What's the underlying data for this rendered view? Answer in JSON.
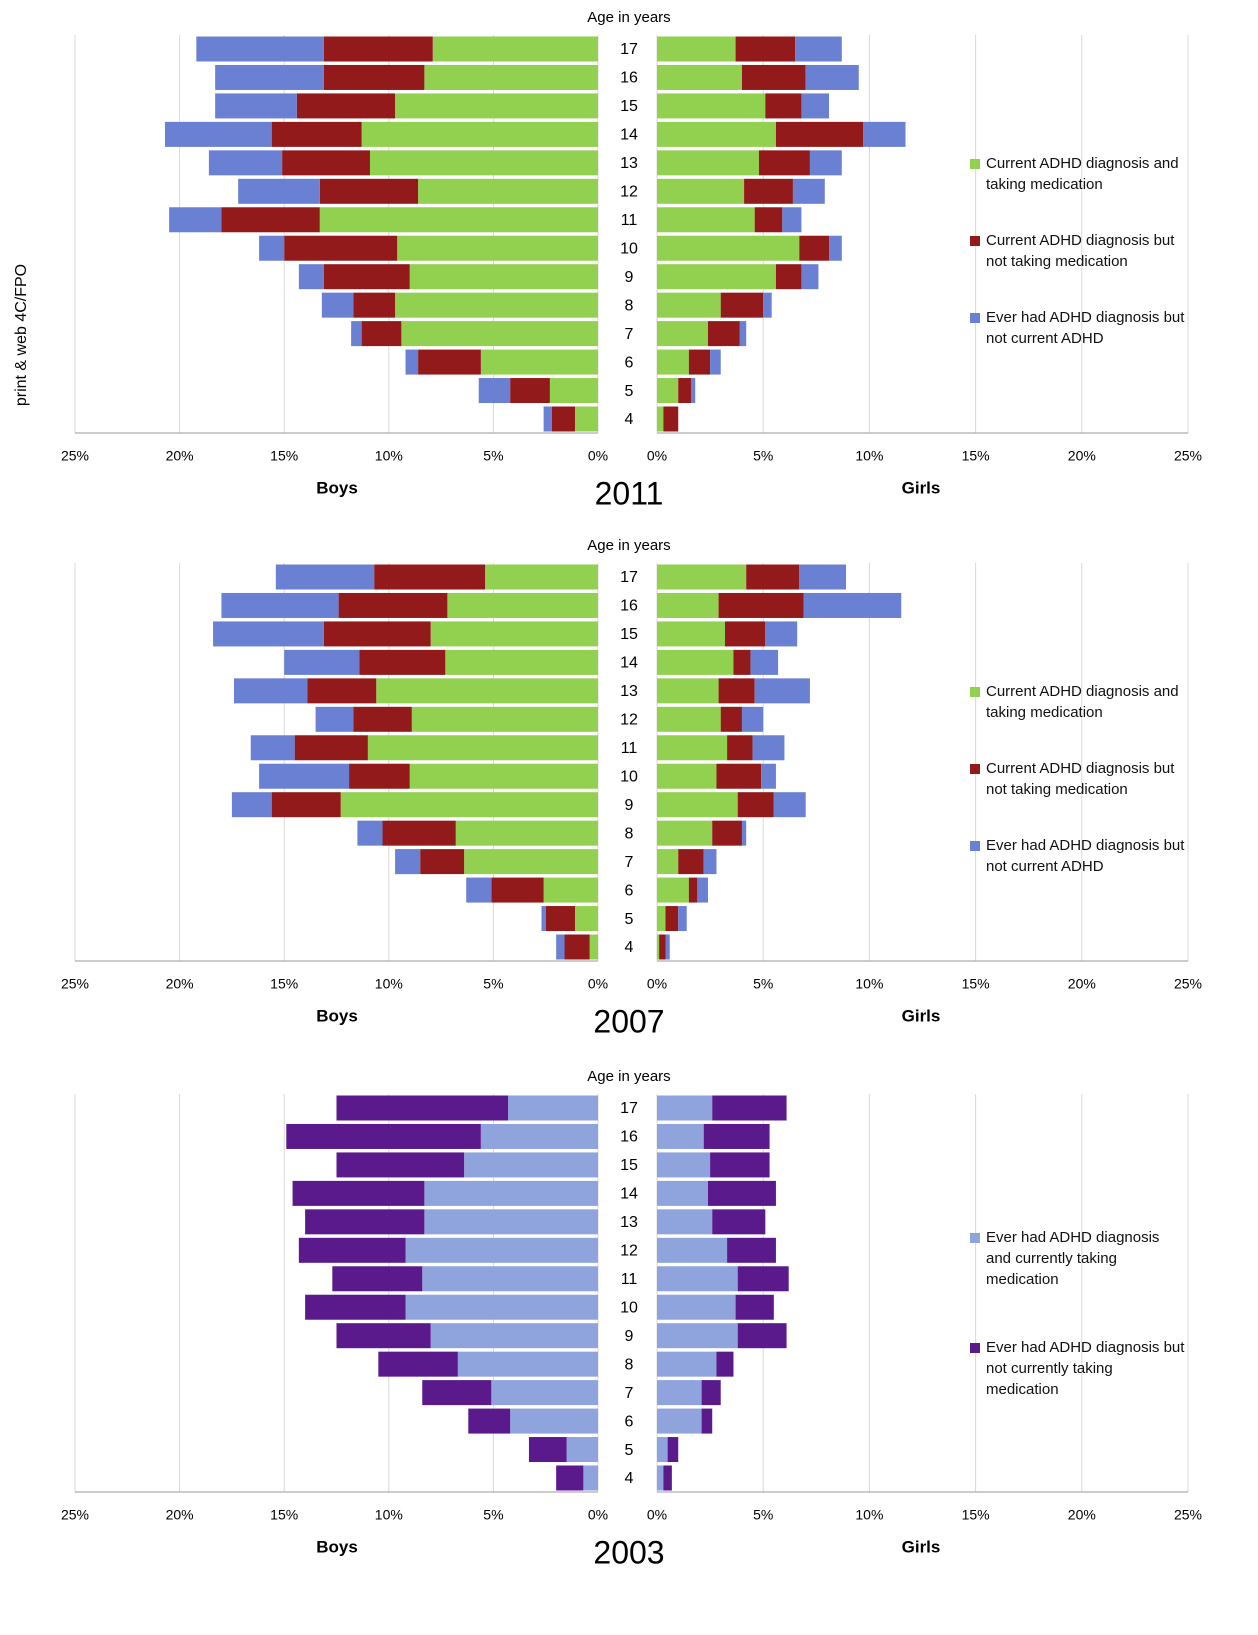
{
  "side_note": "print & web 4C/FPO",
  "chart_data": [
    {
      "type": "pyramid",
      "title": "2011",
      "axis_title": "Age in years",
      "left_label": "Boys",
      "right_label": "Girls",
      "categories": [
        "17",
        "16",
        "15",
        "14",
        "13",
        "12",
        "11",
        "10",
        "9",
        "8",
        "7",
        "6",
        "5",
        "4"
      ],
      "xlim": [
        0,
        25
      ],
      "xticks": [
        {
          "value": 0,
          "label": "0%"
        },
        {
          "value": 5,
          "label": "5%"
        },
        {
          "value": 10,
          "label": "10%"
        },
        {
          "value": 15,
          "label": "15%"
        },
        {
          "value": 20,
          "label": "20%"
        },
        {
          "value": 25,
          "label": "25%"
        }
      ],
      "grid": true,
      "series": [
        {
          "name": "Current ADHD diagnosis and taking medication",
          "color": "#92d050",
          "boys": [
            7.9,
            8.3,
            9.7,
            11.3,
            10.9,
            8.6,
            13.3,
            9.6,
            9.0,
            9.7,
            9.4,
            5.6,
            2.3,
            1.1
          ],
          "girls": [
            3.7,
            4.0,
            5.1,
            5.6,
            4.8,
            4.1,
            4.6,
            6.7,
            5.6,
            3.0,
            2.4,
            1.5,
            1.0,
            0.3
          ]
        },
        {
          "name": "Current ADHD diagnosis but not taking medication",
          "color": "#921a1a",
          "boys": [
            5.2,
            4.8,
            4.7,
            4.3,
            4.2,
            4.7,
            4.7,
            5.4,
            4.1,
            2.0,
            1.9,
            3.0,
            1.9,
            1.1
          ],
          "girls": [
            2.8,
            3.0,
            1.7,
            4.1,
            2.4,
            2.3,
            1.3,
            1.4,
            1.2,
            2.0,
            1.5,
            1.0,
            0.6,
            0.7
          ]
        },
        {
          "name": "Ever had ADHD diagnosis but not current ADHD",
          "color": "#6a80d2",
          "boys": [
            6.1,
            5.2,
            3.9,
            5.1,
            3.5,
            3.9,
            2.5,
            1.2,
            1.2,
            1.5,
            0.5,
            0.6,
            1.5,
            0.4
          ],
          "girls": [
            2.2,
            2.5,
            1.3,
            2.0,
            1.5,
            1.5,
            0.9,
            0.6,
            0.8,
            0.4,
            0.3,
            0.5,
            0.2,
            0
          ]
        }
      ]
    },
    {
      "type": "pyramid",
      "title": "2007",
      "axis_title": "Age in years",
      "left_label": "Boys",
      "right_label": "Girls",
      "categories": [
        "17",
        "16",
        "15",
        "14",
        "13",
        "12",
        "11",
        "10",
        "9",
        "8",
        "7",
        "6",
        "5",
        "4"
      ],
      "xlim": [
        0,
        25
      ],
      "xticks": [
        {
          "value": 0,
          "label": "0%"
        },
        {
          "value": 5,
          "label": "5%"
        },
        {
          "value": 10,
          "label": "10%"
        },
        {
          "value": 15,
          "label": "15%"
        },
        {
          "value": 20,
          "label": "20%"
        },
        {
          "value": 25,
          "label": "25%"
        }
      ],
      "grid": true,
      "series": [
        {
          "name": "Current ADHD diagnosis and taking medication",
          "color": "#92d050",
          "boys": [
            5.4,
            7.2,
            8.0,
            7.3,
            10.6,
            8.9,
            11.0,
            9.0,
            12.3,
            6.8,
            6.4,
            2.6,
            1.1,
            0.4
          ],
          "girls": [
            4.2,
            2.9,
            3.2,
            3.6,
            2.9,
            3.0,
            3.3,
            2.8,
            3.8,
            2.6,
            1.0,
            1.5,
            0.4,
            0.1
          ]
        },
        {
          "name": "Current ADHD diagnosis but not taking medication",
          "color": "#921a1a",
          "boys": [
            5.3,
            5.2,
            5.1,
            4.1,
            3.3,
            2.8,
            3.5,
            2.9,
            3.3,
            3.5,
            2.1,
            2.5,
            1.4,
            1.2
          ],
          "girls": [
            2.5,
            4.0,
            1.9,
            0.8,
            1.7,
            1.0,
            1.2,
            2.1,
            1.7,
            1.4,
            1.2,
            0.4,
            0.6,
            0.3
          ]
        },
        {
          "name": "Ever had ADHD diagnosis but not current ADHD",
          "color": "#6a80d2",
          "boys": [
            4.7,
            5.6,
            5.3,
            3.6,
            3.5,
            1.8,
            2.1,
            4.3,
            1.9,
            1.2,
            1.2,
            1.2,
            0.2,
            0.4
          ],
          "girls": [
            2.2,
            4.6,
            1.5,
            1.3,
            2.6,
            1.0,
            1.5,
            0.7,
            1.5,
            0.2,
            0.6,
            0.5,
            0.4,
            0.2
          ]
        }
      ]
    },
    {
      "type": "pyramid",
      "title": "2003",
      "axis_title": "Age in years",
      "left_label": "Boys",
      "right_label": "Girls",
      "categories": [
        "17",
        "16",
        "15",
        "14",
        "13",
        "12",
        "11",
        "10",
        "9",
        "8",
        "7",
        "6",
        "5",
        "4"
      ],
      "xlim": [
        0,
        25
      ],
      "xticks": [
        {
          "value": 0,
          "label": "0%"
        },
        {
          "value": 5,
          "label": "5%"
        },
        {
          "value": 10,
          "label": "10%"
        },
        {
          "value": 15,
          "label": "15%"
        },
        {
          "value": 20,
          "label": "20%"
        },
        {
          "value": 25,
          "label": "25%"
        }
      ],
      "grid": true,
      "series": [
        {
          "name": "Ever had ADHD diagnosis and currently taking medication",
          "color": "#8fa3dd",
          "boys": [
            4.3,
            5.6,
            6.4,
            8.3,
            8.3,
            9.2,
            8.4,
            9.2,
            8.0,
            6.7,
            5.1,
            4.2,
            1.5,
            0.7
          ],
          "girls": [
            2.6,
            2.2,
            2.5,
            2.4,
            2.6,
            3.3,
            3.8,
            3.7,
            3.8,
            2.8,
            2.1,
            2.1,
            0.5,
            0.3
          ]
        },
        {
          "name": "Ever had ADHD diagnosis but not currently taking medication",
          "color": "#5a1a8c",
          "boys": [
            8.2,
            9.3,
            6.1,
            6.3,
            5.7,
            5.1,
            4.3,
            4.8,
            4.5,
            3.8,
            3.3,
            2.0,
            1.8,
            1.3
          ],
          "girls": [
            3.5,
            3.1,
            2.8,
            3.2,
            2.5,
            2.3,
            2.4,
            1.8,
            2.3,
            0.8,
            0.9,
            0.5,
            0.5,
            0.4
          ]
        }
      ]
    }
  ]
}
